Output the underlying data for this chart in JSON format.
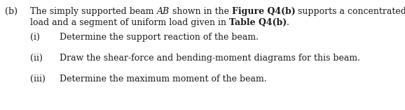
{
  "background_color": "#ffffff",
  "fig_width": 5.78,
  "fig_height": 1.58,
  "dpi": 100,
  "font_size": 9.0,
  "font_family": "DejaVu Serif",
  "text_color": "#1a1a1a",
  "b_label": "(b)",
  "line1_p1": "The simply supported beam ",
  "line1_italic": "AB",
  "line1_p2": " shown in the ",
  "line1_bold": "Figure Q4(b)",
  "line1_p3": " supports a concentrated",
  "line2_p1": "load and a segment of uniform load given in ",
  "line2_bold": "Table Q4(b)",
  "line2_p2": ".",
  "i_label": "(i)",
  "i_text": "Determine the support reaction of the beam.",
  "ii_label": "(ii)",
  "ii_text": "Draw the shear-force and bending-moment diagrams for this beam.",
  "iii_label": "(iii)",
  "iii_text": "Determine the maximum moment of the beam."
}
